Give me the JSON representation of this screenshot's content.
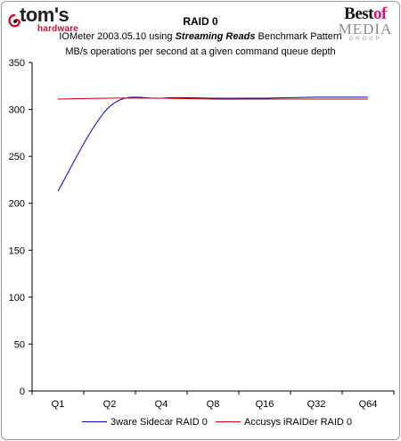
{
  "logos": {
    "toms_main": "tom's",
    "toms_sub": "hardware",
    "bom_best": "Best",
    "bom_of": "of",
    "bom_media": "MEDIA",
    "bom_group": "GROUP"
  },
  "chart_data": {
    "type": "line",
    "title": "RAID 0",
    "subtitle_line1_pre": "IOMeter 2003.05.10 using ",
    "subtitle_line1_em": "Streaming Reads",
    "subtitle_line1_post": " Benchmark Pattern",
    "subtitle_line2": "MB/s operations per second at a given command queue depth",
    "categories": [
      "Q1",
      "Q2",
      "Q4",
      "Q8",
      "Q16",
      "Q32",
      "Q64"
    ],
    "ylim": [
      0,
      350
    ],
    "yticks": [
      0,
      50,
      100,
      150,
      200,
      250,
      300,
      350
    ],
    "grid": false,
    "legend_position": "bottom",
    "series": [
      {
        "name": "3ware Sidecar RAID 0",
        "color": "#0000cc",
        "values": [
          213,
          303,
          312,
          312,
          312,
          313,
          313
        ]
      },
      {
        "name": "Accusys iRAIDer RAID 0",
        "color": "#cc0000",
        "values": [
          311,
          312,
          312,
          311,
          311,
          311,
          311
        ]
      }
    ]
  }
}
